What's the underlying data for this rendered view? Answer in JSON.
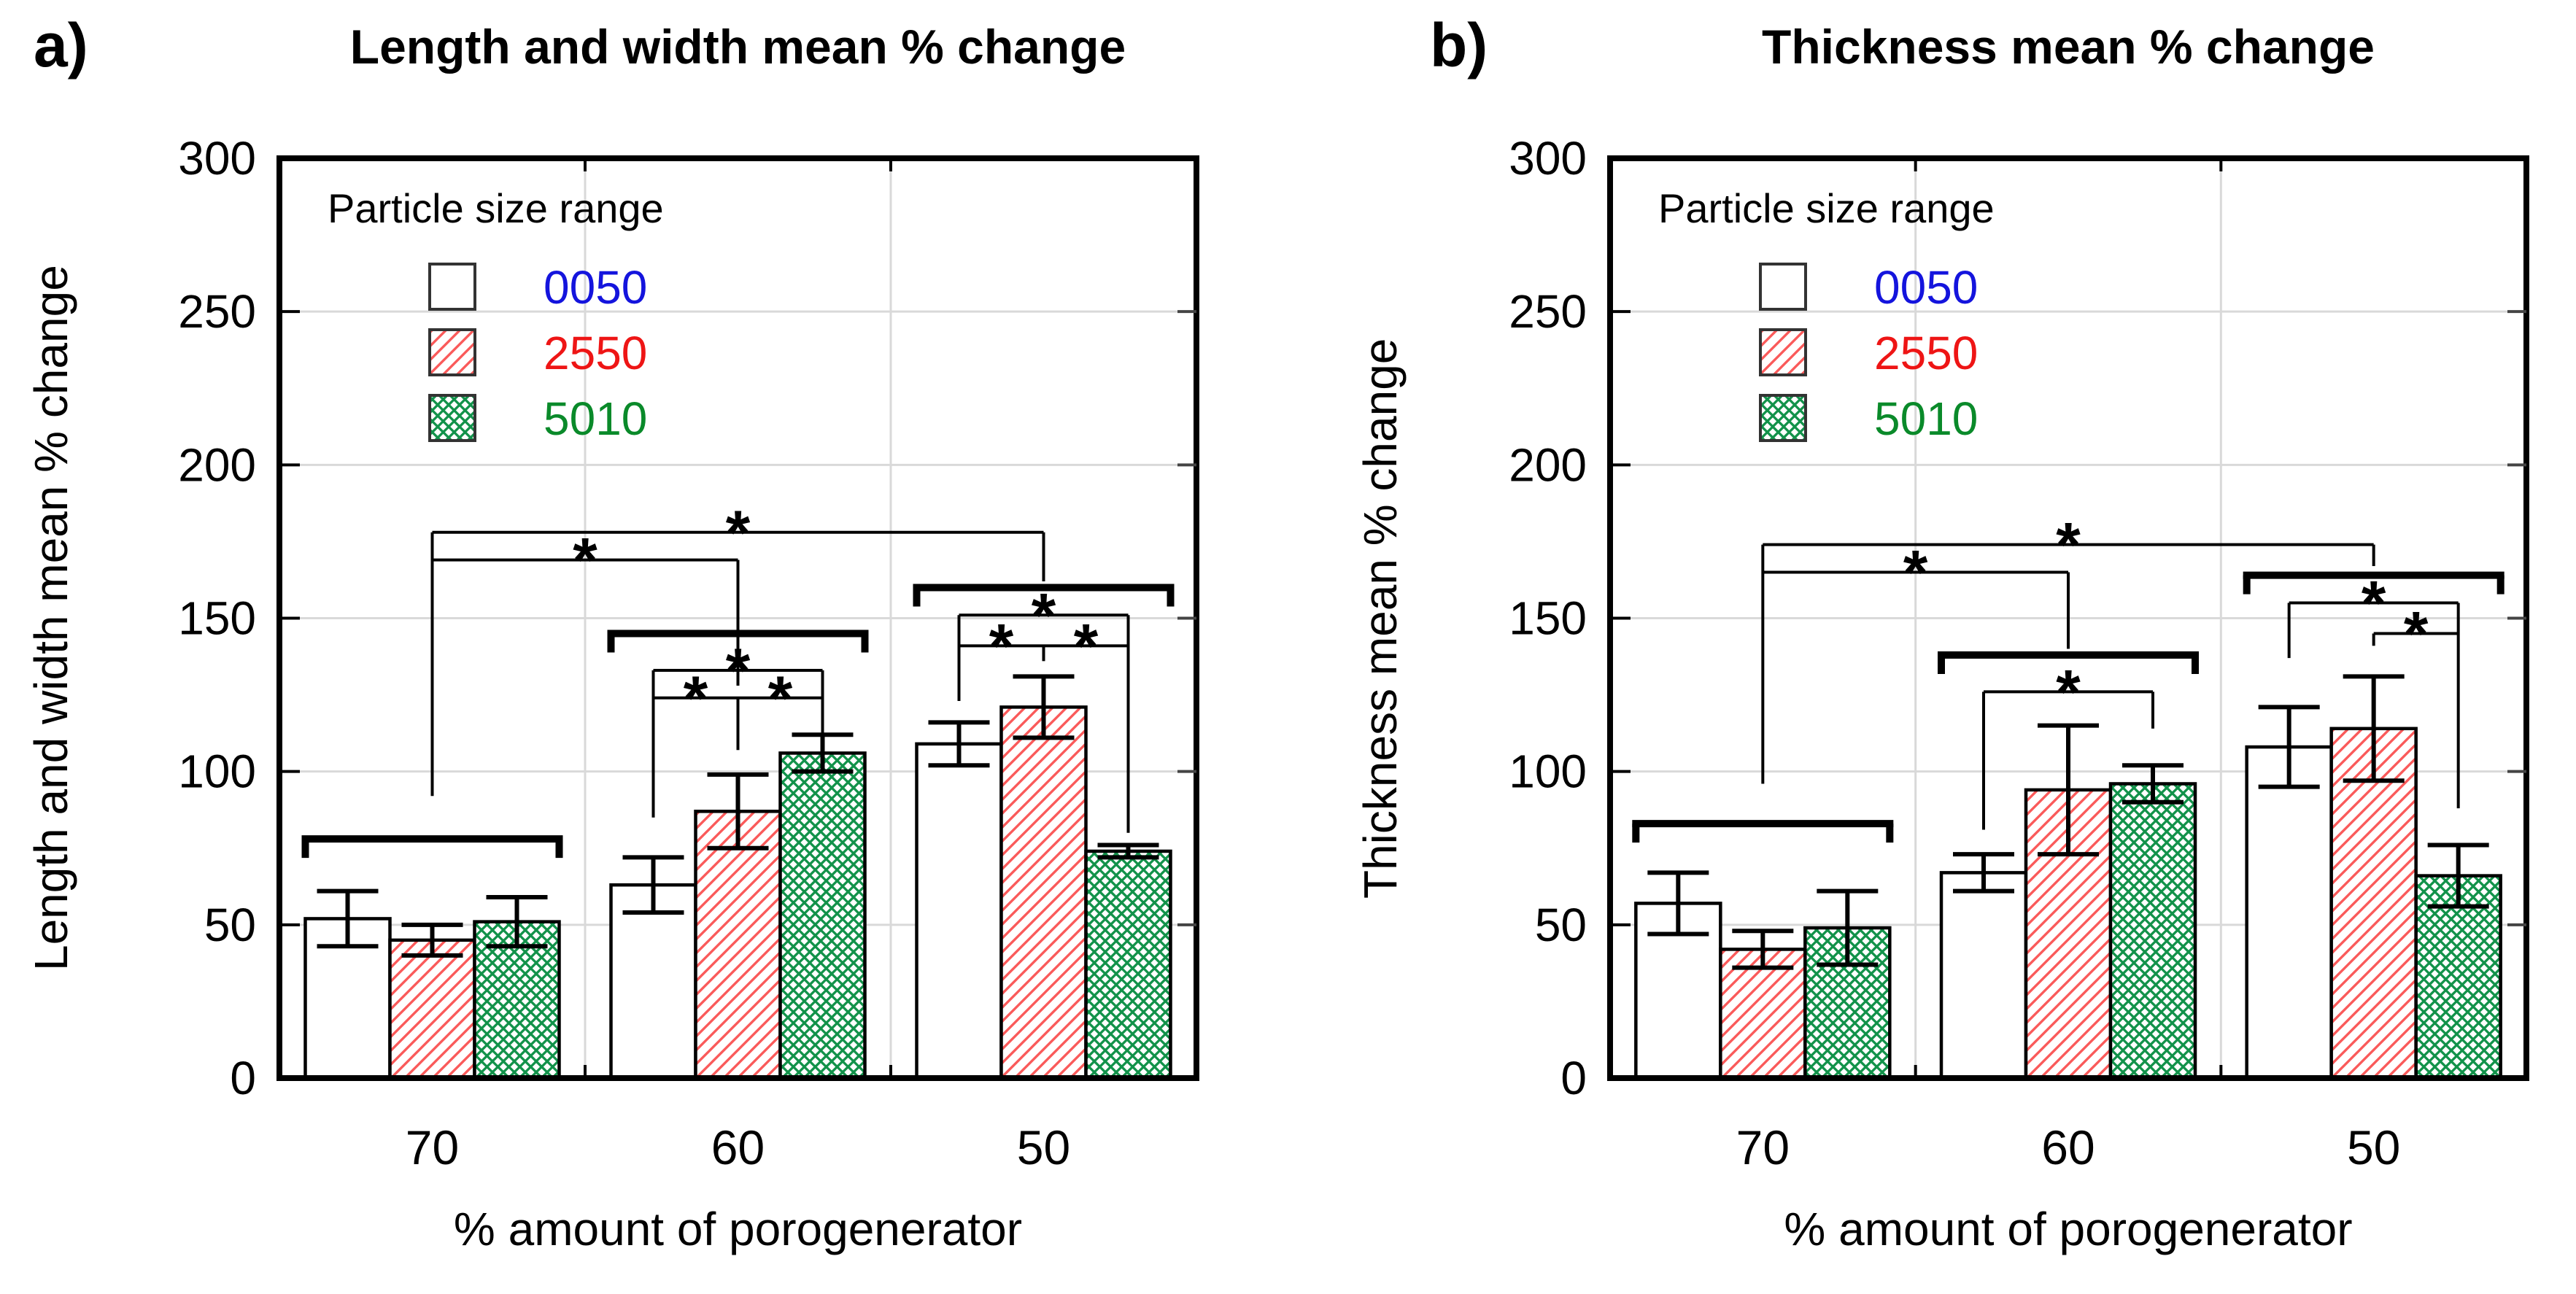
{
  "figure": {
    "panel_a_label": "a)",
    "panel_b_label": "b)"
  },
  "colors": {
    "frame": "#000000",
    "gridline": "#d9d9d9",
    "bar_outline": "#000000",
    "red_hatch": "#fa5a5a",
    "green_hatch": "#12924a",
    "legend_blue_text": "#1414dd",
    "legend_red_text": "#ee1515",
    "legend_green_text": "#0a8a2a"
  },
  "chart_data": [
    {
      "id": "a",
      "type": "bar",
      "title": "Length and width mean % change",
      "ylabel": "Length and width mean % change",
      "xlabel": "% amount of porogenerator",
      "ylim": [
        0,
        300
      ],
      "yticks": [
        0,
        50,
        100,
        150,
        200,
        250,
        300
      ],
      "grid": true,
      "categories": [
        "70",
        "60",
        "50"
      ],
      "legend": {
        "title": "Particle size range",
        "position": "top-left-inside",
        "entries": [
          {
            "label": "0050",
            "swatch": "plain",
            "text_color": "#1414dd"
          },
          {
            "label": "2550",
            "swatch": "red_hatch",
            "text_color": "#ee1515"
          },
          {
            "label": "5010",
            "swatch": "green_cross",
            "text_color": "#0a8a2a"
          }
        ]
      },
      "series": [
        {
          "name": "0050",
          "values": [
            52,
            63,
            109
          ],
          "errors": [
            9,
            9,
            7
          ]
        },
        {
          "name": "2550",
          "values": [
            45,
            87,
            121
          ],
          "errors": [
            5,
            12,
            10
          ]
        },
        {
          "name": "5010",
          "values": [
            51,
            106,
            74
          ],
          "errors": [
            8,
            6,
            2
          ]
        }
      ],
      "brackets": [
        {
          "style": "bold",
          "y": 78,
          "x1": {
            "g": 0,
            "b": 0,
            "edge": "left"
          },
          "x2": {
            "g": 0,
            "b": 2,
            "edge": "right"
          }
        },
        {
          "style": "bold",
          "y": 145,
          "x1": {
            "g": 1,
            "b": 0,
            "edge": "left"
          },
          "x2": {
            "g": 1,
            "b": 2,
            "edge": "right"
          }
        },
        {
          "style": "thin",
          "y": 133,
          "x1": {
            "g": 1,
            "b": 0
          },
          "x2": {
            "g": 1,
            "b": 2
          },
          "stars": [
            0.5
          ],
          "legL": 85,
          "legR": 104
        },
        {
          "style": "thin",
          "y": 124,
          "x1": {
            "g": 1,
            "b": 0
          },
          "x2": {
            "g": 1,
            "b": 2
          },
          "stars": [
            0.25,
            0.75
          ],
          "drop": {
            "g": 1,
            "b": 1,
            "toY": 107
          }
        },
        {
          "style": "bold",
          "y": 160,
          "x1": {
            "g": 2,
            "b": 0,
            "edge": "left"
          },
          "x2": {
            "g": 2,
            "b": 2,
            "edge": "right"
          }
        },
        {
          "style": "thin",
          "y": 151,
          "x1": {
            "g": 2,
            "b": 0
          },
          "x2": {
            "g": 2,
            "b": 2
          },
          "stars": [
            0.5
          ],
          "legL": 123,
          "legR": 80
        },
        {
          "style": "thin",
          "y": 141,
          "x1": {
            "g": 2,
            "b": 0
          },
          "x2": {
            "g": 2,
            "b": 2
          },
          "stars": [
            0.25,
            0.75
          ],
          "drop": {
            "g": 2,
            "b": 1,
            "toY": 136
          }
        },
        {
          "style": "thin",
          "y": 178,
          "x1": {
            "g": 0
          },
          "x2": {
            "g": 2
          },
          "stars": [
            0.5
          ],
          "legL": 92,
          "legR": 162
        },
        {
          "style": "thin",
          "y": 169,
          "x1": {
            "g": 0
          },
          "x2": {
            "g": 1
          },
          "stars": [
            0.5
          ],
          "legR": 128
        }
      ]
    },
    {
      "id": "b",
      "type": "bar",
      "title": "Thickness mean % change",
      "ylabel": "Thickness mean % change",
      "xlabel": "% amount of porogenerator",
      "ylim": [
        0,
        300
      ],
      "yticks": [
        0,
        50,
        100,
        150,
        200,
        250,
        300
      ],
      "grid": true,
      "categories": [
        "70",
        "60",
        "50"
      ],
      "legend": {
        "title": "Particle size range",
        "position": "top-left-inside",
        "entries": [
          {
            "label": "0050",
            "swatch": "plain",
            "text_color": "#1414dd"
          },
          {
            "label": "2550",
            "swatch": "red_hatch",
            "text_color": "#ee1515"
          },
          {
            "label": "5010",
            "swatch": "green_cross",
            "text_color": "#0a8a2a"
          }
        ]
      },
      "series": [
        {
          "name": "0050",
          "values": [
            57,
            67,
            108
          ],
          "errors": [
            10,
            6,
            13
          ]
        },
        {
          "name": "2550",
          "values": [
            42,
            94,
            114
          ],
          "errors": [
            6,
            21,
            17
          ]
        },
        {
          "name": "5010",
          "values": [
            49,
            96,
            66
          ],
          "errors": [
            12,
            6,
            10
          ]
        }
      ],
      "brackets": [
        {
          "style": "bold",
          "y": 83,
          "x1": {
            "g": 0,
            "b": 0,
            "edge": "left"
          },
          "x2": {
            "g": 0,
            "b": 2,
            "edge": "right"
          }
        },
        {
          "style": "bold",
          "y": 138,
          "x1": {
            "g": 1,
            "b": 0,
            "edge": "left"
          },
          "x2": {
            "g": 1,
            "b": 2,
            "edge": "right"
          }
        },
        {
          "style": "thin",
          "y": 126,
          "x1": {
            "g": 1,
            "b": 0
          },
          "x2": {
            "g": 1,
            "b": 2
          },
          "stars": [
            0.5
          ],
          "legL": 81,
          "legR": 114
        },
        {
          "style": "bold",
          "y": 164,
          "x1": {
            "g": 2,
            "b": 0,
            "edge": "left"
          },
          "x2": {
            "g": 2,
            "b": 2,
            "edge": "right"
          }
        },
        {
          "style": "thin",
          "y": 155,
          "x1": {
            "g": 2,
            "b": 0
          },
          "x2": {
            "g": 2,
            "b": 2
          },
          "stars": [
            0.5
          ],
          "legL": 137,
          "legR": 88
        },
        {
          "style": "thin",
          "y": 145,
          "x1": {
            "g": 2,
            "b": 1
          },
          "x2": {
            "g": 2,
            "b": 2
          },
          "stars": [
            0.5
          ],
          "legL": 141
        },
        {
          "style": "thin",
          "y": 174,
          "x1": {
            "g": 0
          },
          "x2": {
            "g": 2
          },
          "stars": [
            0.5
          ],
          "legL": 96,
          "legR": 167
        },
        {
          "style": "thin",
          "y": 165,
          "x1": {
            "g": 0
          },
          "x2": {
            "g": 1
          },
          "stars": [
            0.5
          ],
          "legR": 140
        }
      ]
    }
  ]
}
